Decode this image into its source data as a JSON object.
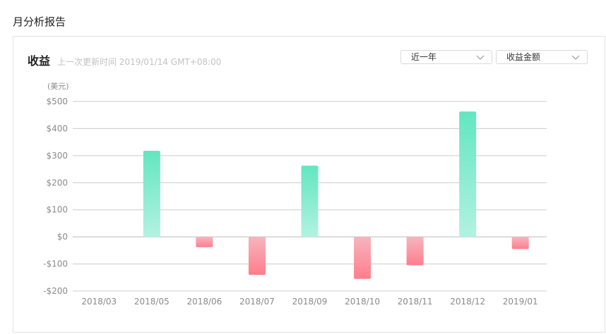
{
  "page": {
    "title": "月分析报告"
  },
  "card": {
    "title": "收益",
    "updated": "上一次更新时间 2019/01/14 GMT+08:00"
  },
  "filters": {
    "range": {
      "value": "近一年",
      "icon": "chevron-down-icon"
    },
    "metric": {
      "value": "收益金额",
      "icon": "chevron-down-icon"
    }
  },
  "colors": {
    "positive_top": "#62e6c0",
    "positive_bottom": "#b2f2e1",
    "negative_top": "#f5b5be",
    "negative_bottom": "#ff7d8c",
    "grid": "#cccccc"
  },
  "chart_data": {
    "type": "bar",
    "unit_label": "(美元)",
    "categories": [
      "2018/03",
      "2018/05",
      "2018/06",
      "2018/07",
      "2018/09",
      "2018/10",
      "2018/11",
      "2018/12",
      "2019/01"
    ],
    "values": [
      0,
      318,
      -38,
      -140,
      263,
      -155,
      -105,
      463,
      -45
    ],
    "ylim": [
      -200,
      500
    ],
    "yticks": [
      500,
      400,
      300,
      200,
      100,
      0,
      -100,
      -200
    ],
    "ytick_labels": [
      "$500",
      "$400",
      "$300",
      "$200",
      "$100",
      "$0",
      "-$100",
      "-$200"
    ],
    "grid": true,
    "legend": "none"
  }
}
